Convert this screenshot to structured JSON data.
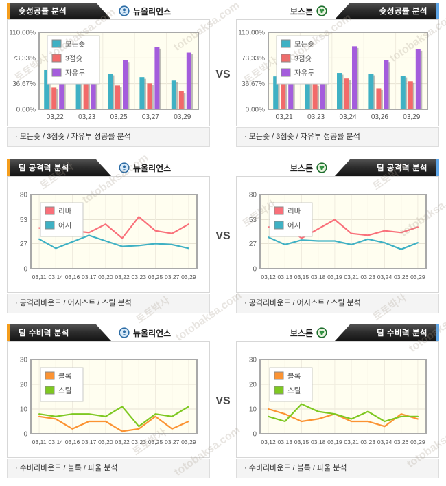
{
  "vs_label": "VS",
  "watermark": {
    "brand": "토토박사",
    "site": "totobaksa.com"
  },
  "teams": {
    "left": {
      "name": "뉴올리언스",
      "icon": "new-orleans-logo",
      "color": "#2d6da6"
    },
    "right": {
      "name": "보스톤",
      "icon": "boston-logo",
      "color": "#1e6f2e"
    }
  },
  "rows": [
    {
      "title": "슛성공률 분석",
      "note": "· 모든슛 / 3점슛 / 자유투 성공률 분석"
    },
    {
      "title": "팀 공격력 분석",
      "note": "· 공격리바운드 / 어시스트 / 스틸 분석"
    },
    {
      "title": "팀 수비력 분석",
      "note": "· 수비리바운드 / 블록 / 파울 분석"
    }
  ],
  "chart_data": [
    {
      "name": "left-shot-success",
      "type": "bar",
      "title": "슛성공률 분석 - 뉴올리언스",
      "categories": [
        "03,22",
        "03,23",
        "03,25",
        "03,27",
        "03,29"
      ],
      "series": [
        {
          "name": "모든슛",
          "color": "#3fb1c4",
          "values": [
            56,
            52,
            51,
            46,
            41
          ]
        },
        {
          "name": "3점슛",
          "color": "#f26a6a",
          "values": [
            31,
            50,
            34,
            37,
            26
          ]
        },
        {
          "name": "자유투",
          "color": "#a45ddc",
          "values": [
            65,
            76,
            70,
            89,
            81
          ]
        }
      ],
      "ylim": [
        0,
        110
      ],
      "yticks": [
        {
          "v": 0,
          "label": "0,00%"
        },
        {
          "v": 36.67,
          "label": "36,67%"
        },
        {
          "v": 73.33,
          "label": "73,33%"
        },
        {
          "v": 110,
          "label": "110,00%"
        }
      ],
      "plot_bg": "#fffef0",
      "grid": true,
      "legend_position": "top-left"
    },
    {
      "name": "right-shot-success",
      "type": "bar",
      "title": "슛성공률 분석 - 보스톤",
      "categories": [
        "03,21",
        "03,23",
        "03,24",
        "03,26",
        "03,29"
      ],
      "series": [
        {
          "name": "모든슛",
          "color": "#3fb1c4",
          "values": [
            47,
            54,
            52,
            51,
            48
          ]
        },
        {
          "name": "3점슛",
          "color": "#f26a6a",
          "values": [
            45,
            36,
            44,
            30,
            40
          ]
        },
        {
          "name": "자유투",
          "color": "#a45ddc",
          "values": [
            59,
            71,
            90,
            70,
            86
          ]
        }
      ],
      "ylim": [
        0,
        110
      ],
      "yticks": [
        {
          "v": 0,
          "label": "0,00%"
        },
        {
          "v": 36.67,
          "label": "36,67%"
        },
        {
          "v": 73.33,
          "label": "73,33%"
        },
        {
          "v": 110,
          "label": "110,00%"
        }
      ],
      "plot_bg": "#fffef0",
      "grid": true,
      "legend_position": "top-left"
    },
    {
      "name": "left-offense",
      "type": "line",
      "title": "팀 공격력 분석 - 뉴올리언스",
      "categories": [
        "03,11",
        "03,14",
        "03,16",
        "03,17",
        "03,20",
        "03,22",
        "03,23",
        "03,25",
        "03,27",
        "03,29"
      ],
      "series": [
        {
          "name": "리바",
          "color": "#f9707a",
          "values": [
            44,
            43,
            41,
            39,
            48,
            33,
            56,
            41,
            38,
            48
          ]
        },
        {
          "name": "어시",
          "color": "#3fb1c4",
          "values": [
            32,
            22,
            29,
            36,
            30,
            24,
            25,
            27,
            26,
            22
          ]
        }
      ],
      "ylim": [
        0,
        80
      ],
      "yticks": [
        {
          "v": 0,
          "label": "0"
        },
        {
          "v": 27,
          "label": "27"
        },
        {
          "v": 53,
          "label": "53"
        },
        {
          "v": 80,
          "label": "80"
        }
      ],
      "plot_bg": "#fffef0",
      "grid": true,
      "legend_position": "top-left"
    },
    {
      "name": "right-offense",
      "type": "line",
      "title": "팀 공격력 분석 - 보스톤",
      "categories": [
        "03,12",
        "03,13",
        "03,15",
        "03,18",
        "03,19",
        "03,21",
        "03,23",
        "03,24",
        "03,26",
        "03,29"
      ],
      "series": [
        {
          "name": "리바",
          "color": "#f9707a",
          "values": [
            45,
            46,
            33,
            43,
            53,
            38,
            36,
            41,
            39,
            45
          ]
        },
        {
          "name": "어시",
          "color": "#3fb1c4",
          "values": [
            34,
            26,
            31,
            30,
            30,
            26,
            32,
            28,
            21,
            28
          ]
        }
      ],
      "ylim": [
        0,
        80
      ],
      "yticks": [
        {
          "v": 0,
          "label": "0"
        },
        {
          "v": 27,
          "label": "27"
        },
        {
          "v": 53,
          "label": "53"
        },
        {
          "v": 80,
          "label": "80"
        }
      ],
      "plot_bg": "#fffef0",
      "grid": true,
      "legend_position": "top-left"
    },
    {
      "name": "left-defense",
      "type": "line",
      "title": "팀 수비력 분석 - 뉴올리언스",
      "categories": [
        "03,11",
        "03,14",
        "03,16",
        "03,17",
        "03,20",
        "03,22",
        "03,23",
        "03,25",
        "03,27",
        "03,29"
      ],
      "series": [
        {
          "name": "블록",
          "color": "#fb9333",
          "values": [
            7,
            6,
            2,
            5,
            5,
            1,
            2,
            7,
            2,
            5
          ]
        },
        {
          "name": "스틸",
          "color": "#7ec821",
          "values": [
            8,
            7,
            8,
            8,
            7,
            11,
            3,
            8,
            7,
            11
          ]
        }
      ],
      "ylim": [
        0,
        30
      ],
      "yticks": [
        {
          "v": 0,
          "label": "0"
        },
        {
          "v": 10,
          "label": "10"
        },
        {
          "v": 20,
          "label": "20"
        },
        {
          "v": 30,
          "label": "30"
        }
      ],
      "plot_bg": "#fffef0",
      "grid": true,
      "legend_position": "top-left"
    },
    {
      "name": "right-defense",
      "type": "line",
      "title": "팀 수비력 분석 - 보스톤",
      "categories": [
        "03,12",
        "03,13",
        "03,15",
        "03,18",
        "03,19",
        "03,21",
        "03,23",
        "03,24",
        "03,26",
        "03,29"
      ],
      "series": [
        {
          "name": "블록",
          "color": "#fb9333",
          "values": [
            10,
            8,
            5,
            6,
            8,
            5,
            5,
            3,
            8,
            6
          ]
        },
        {
          "name": "스틸",
          "color": "#7ec821",
          "values": [
            7,
            5,
            12,
            9,
            8,
            6,
            9,
            5,
            7,
            7
          ]
        }
      ],
      "ylim": [
        0,
        30
      ],
      "yticks": [
        {
          "v": 0,
          "label": "0"
        },
        {
          "v": 10,
          "label": "10"
        },
        {
          "v": 20,
          "label": "20"
        },
        {
          "v": 30,
          "label": "30"
        }
      ],
      "plot_bg": "#fffef0",
      "grid": true,
      "legend_position": "top-left"
    }
  ]
}
